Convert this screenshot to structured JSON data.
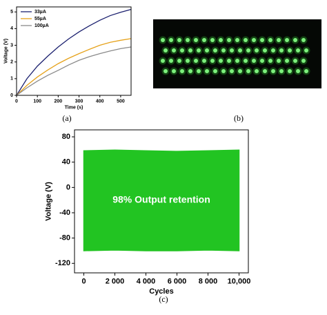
{
  "chart_data": [
    {
      "type": "line",
      "xlabel": "Time (s)",
      "ylabel": "Voltage (V)",
      "x": [
        0,
        50,
        100,
        150,
        200,
        250,
        300,
        350,
        400,
        450,
        500,
        550
      ],
      "series": [
        {
          "name": "33µA",
          "color": "#1a1f6e",
          "values": [
            0,
            1.0,
            1.75,
            2.35,
            2.9,
            3.38,
            3.8,
            4.17,
            4.5,
            4.78,
            4.98,
            5.15
          ]
        },
        {
          "name": "55µA",
          "color": "#e6a21a",
          "values": [
            0,
            0.6,
            1.1,
            1.52,
            1.9,
            2.22,
            2.5,
            2.76,
            3.0,
            3.18,
            3.3,
            3.4
          ]
        },
        {
          "name": "100µA",
          "color": "#8a8a8a",
          "values": [
            0,
            0.45,
            0.85,
            1.2,
            1.5,
            1.82,
            2.1,
            2.32,
            2.5,
            2.66,
            2.8,
            2.9
          ]
        }
      ],
      "xlim": [
        0,
        550
      ],
      "xticks": [
        0,
        100,
        200,
        300,
        400,
        500
      ],
      "ylim": [
        0,
        5.3
      ],
      "yticks": [
        0,
        1,
        2,
        3,
        4,
        5
      ],
      "legend": "upper left"
    },
    {
      "type": "area",
      "xlabel": "Cycles",
      "ylabel": "Voltage (V)",
      "annotation": "98% Output retention",
      "color": "#22c422",
      "x": [
        0,
        2000,
        4000,
        6000,
        8000,
        10000
      ],
      "upper": [
        58,
        59,
        58,
        57,
        58,
        59
      ],
      "lower": [
        -100,
        -99,
        -100,
        -100,
        -99,
        -100
      ],
      "xlim": [
        -600,
        10600
      ],
      "xticks": [
        0,
        {
          "value": 2000,
          "label": "2 000"
        },
        {
          "value": 4000,
          "label": "4 000"
        },
        {
          "value": 6000,
          "label": "6 000"
        },
        {
          "value": 8000,
          "label": "8 000"
        },
        {
          "value": 10000,
          "label": "10,000"
        }
      ],
      "ylim": [
        -135,
        91
      ],
      "yticks": [
        -120,
        -80,
        -40,
        0,
        40,
        80
      ]
    }
  ],
  "captions": [
    "(a)",
    "(b)",
    "(c)"
  ]
}
